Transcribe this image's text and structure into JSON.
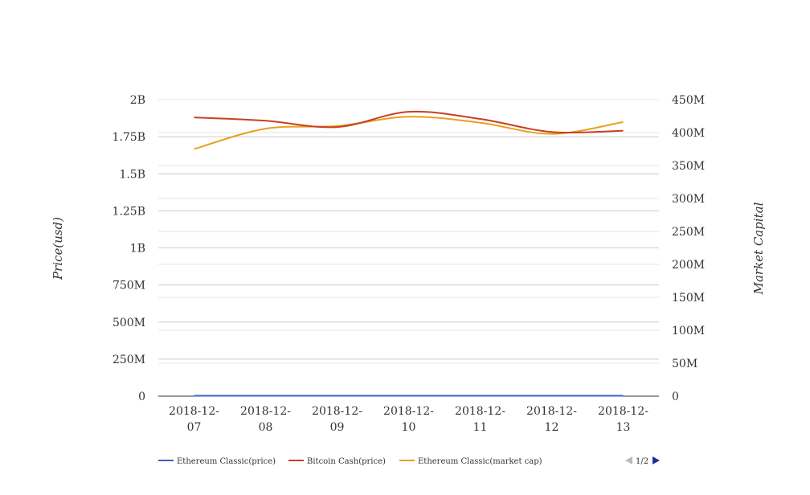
{
  "chart_data": {
    "type": "line",
    "categories": [
      [
        "2018-12-",
        "07"
      ],
      [
        "2018-12-",
        "08"
      ],
      [
        "2018-12-",
        "09"
      ],
      [
        "2018-12-",
        "10"
      ],
      [
        "2018-12-",
        "11"
      ],
      [
        "2018-12-",
        "12"
      ],
      [
        "2018-12-",
        "13"
      ]
    ],
    "ylabel_left": "Price(usd)",
    "ylabel_right": "Market Capital",
    "y_left": {
      "min": 0,
      "max": 2000000000,
      "ticks": [
        "0",
        "250M",
        "500M",
        "750M",
        "1B",
        "1.25B",
        "1.5B",
        "1.75B",
        "2B"
      ]
    },
    "y_right": {
      "min": 0,
      "max": 450000000,
      "ticks": [
        "0",
        "50M",
        "100M",
        "150M",
        "200M",
        "250M",
        "300M",
        "350M",
        "400M",
        "450M"
      ]
    },
    "grid": true,
    "legend_position": "bottom-left",
    "series": [
      {
        "name": "Ethereum Classic(price)",
        "axis": "left",
        "color": "#3a5fc8",
        "values": [
          4.5,
          4.3,
          4.4,
          4.6,
          4.4,
          4.3,
          4.4
        ]
      },
      {
        "name": "Bitcoin Cash(price)",
        "axis": "left",
        "color": "#c8401f",
        "values": [
          1880000000,
          1858000000,
          1815000000,
          1918000000,
          1870000000,
          1782000000,
          1790000000
        ]
      },
      {
        "name": "Ethereum Classic(market cap)",
        "axis": "right",
        "color": "#e8a020",
        "values": [
          375000000,
          406000000,
          410000000,
          424000000,
          415000000,
          398000000,
          416000000
        ]
      },
      {
        "name": "",
        "axis": "left",
        "color": "#2a9a3a",
        "values": [
          2500000,
          2500000,
          2500000,
          2500000,
          2500000,
          2500000,
          2500000
        ]
      }
    ],
    "pager": {
      "label": "1/2"
    }
  }
}
